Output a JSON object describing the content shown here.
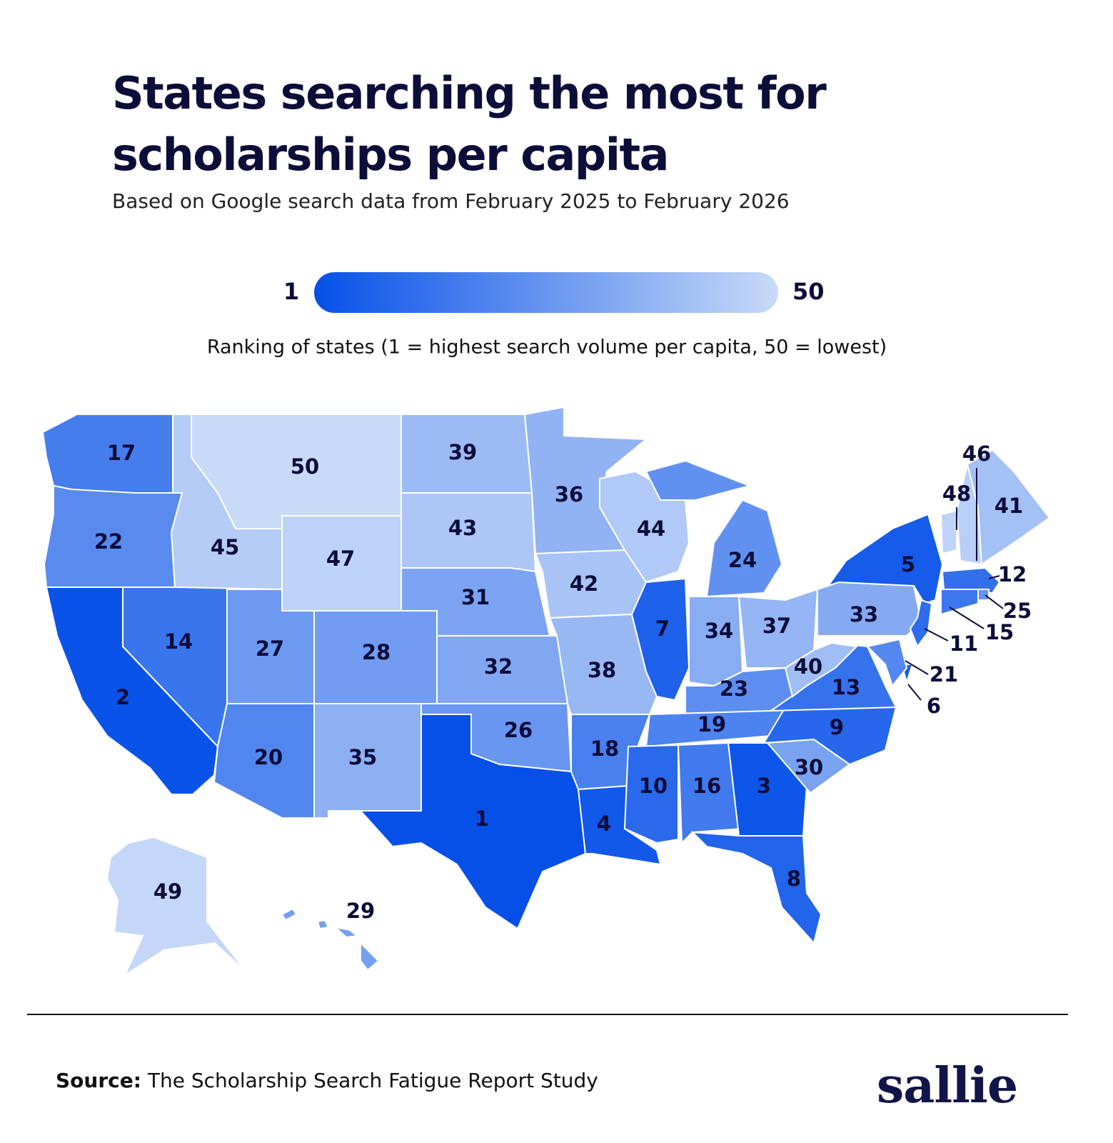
{
  "title": "States searching the most for scholarships per capita",
  "subtitle": "Based on Google search data from February 2025 to February 2026",
  "legend": {
    "min": 1,
    "max": 50,
    "colors": [
      "#0650e8",
      "#c8daf8"
    ],
    "caption": "Ranking of states (1 = highest search volume per capita, 50 = lowest)"
  },
  "regions": [
    {
      "rank": 17
    },
    {
      "rank": 22
    },
    {
      "rank": 2
    },
    {
      "rank": 14
    },
    {
      "rank": 45
    },
    {
      "rank": 50
    },
    {
      "rank": 47
    },
    {
      "rank": 27
    },
    {
      "rank": 28
    },
    {
      "rank": 20
    },
    {
      "rank": 35
    },
    {
      "rank": 39
    },
    {
      "rank": 43
    },
    {
      "rank": 31
    },
    {
      "rank": 32
    },
    {
      "rank": 26
    },
    {
      "rank": 1
    },
    {
      "rank": 36
    },
    {
      "rank": 42
    },
    {
      "rank": 38
    },
    {
      "rank": 18
    },
    {
      "rank": 4
    },
    {
      "rank": 44
    },
    {
      "rank": 7
    },
    {
      "rank": 24
    },
    {
      "rank": 34
    },
    {
      "rank": 37
    },
    {
      "rank": 23
    },
    {
      "rank": 19
    },
    {
      "rank": 10
    },
    {
      "rank": 16
    },
    {
      "rank": 3
    },
    {
      "rank": 8
    },
    {
      "rank": 30
    },
    {
      "rank": 9
    },
    {
      "rank": 13
    },
    {
      "rank": 40
    },
    {
      "rank": 33
    },
    {
      "rank": 5
    },
    {
      "rank": 48
    },
    {
      "rank": 46
    },
    {
      "rank": 41
    },
    {
      "rank": 12
    },
    {
      "rank": 25
    },
    {
      "rank": 15
    },
    {
      "rank": 11
    },
    {
      "rank": 6
    },
    {
      "rank": 21
    },
    {
      "rank": 49
    },
    {
      "rank": 29
    }
  ],
  "footer": {
    "source_label": "Source:",
    "source": "The Scholarship Search Fatigue Report Study"
  },
  "logo": "sallie"
}
